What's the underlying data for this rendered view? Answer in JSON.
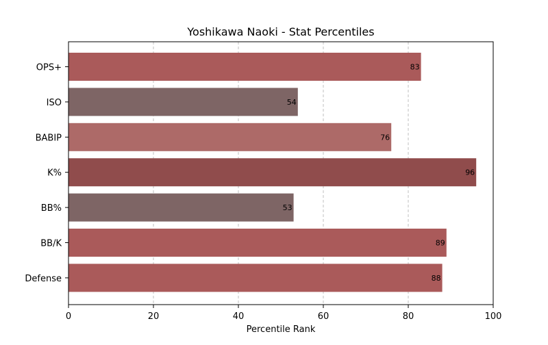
{
  "chart_data": {
    "type": "bar",
    "orientation": "horizontal",
    "title": "Yoshikawa Naoki - Stat Percentiles",
    "xlabel": "Percentile Rank",
    "ylabel": "",
    "xlim": [
      0,
      100
    ],
    "xticks": [
      0,
      20,
      40,
      60,
      80,
      100
    ],
    "grid": "x-axis dashed",
    "categories": [
      "OPS+",
      "ISO",
      "BABIP",
      "K%",
      "BB%",
      "BB/K",
      "Defense"
    ],
    "values": [
      83,
      54,
      76,
      96,
      53,
      89,
      88
    ],
    "bar_colors": [
      "#aa5a5a",
      "#7e6565",
      "#ad6a68",
      "#904c4c",
      "#7e6565",
      "#aa5a5a",
      "#aa5a5a"
    ]
  }
}
